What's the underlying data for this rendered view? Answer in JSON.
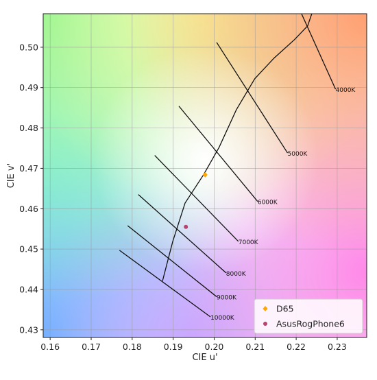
{
  "chart_data": {
    "type": "scatter",
    "x_label": "CIE u'",
    "y_label": "CIE v'",
    "xlim": [
      0.1583,
      0.2372
    ],
    "ylim": [
      0.4281,
      0.5083
    ],
    "xticks": [
      0.16,
      0.17,
      0.18,
      0.19,
      {
        "value": 0.2,
        "label": "0.20"
      },
      0.21,
      0.22,
      0.23
    ],
    "yticks": [
      0.43,
      0.44,
      0.45,
      0.46,
      0.47,
      0.48,
      0.49,
      {
        "value": 0.5,
        "label": "0.50"
      }
    ],
    "grid": true,
    "legend": "lower right",
    "locus": {
      "u": [
        0.1874,
        0.1899,
        0.1929,
        0.1974,
        0.2012,
        0.2054,
        0.2099,
        0.2146,
        0.2196,
        0.2228,
        0.2238
      ],
      "v": [
        0.4421,
        0.4519,
        0.4614,
        0.4684,
        0.4752,
        0.4845,
        0.4922,
        0.4973,
        0.5019,
        0.5053,
        0.5083
      ]
    },
    "isotherms": [
      {
        "name": "4000K",
        "u": [
          0.2213,
          0.2296
        ],
        "v": [
          0.5083,
          0.4896
        ]
      },
      {
        "name": "5000K",
        "u": [
          0.2006,
          0.2179
        ],
        "v": [
          0.5012,
          0.4738
        ]
      },
      {
        "name": "6000K",
        "u": [
          0.1914,
          0.2106
        ],
        "v": [
          0.4854,
          0.4618
        ]
      },
      {
        "name": "7000K",
        "u": [
          0.1855,
          0.2059
        ],
        "v": [
          0.4732,
          0.4519
        ]
      },
      {
        "name": "8000K",
        "u": [
          0.1815,
          0.2029
        ],
        "v": [
          0.4635,
          0.4441
        ]
      },
      {
        "name": "9000K",
        "u": [
          0.1789,
          0.2006
        ],
        "v": [
          0.4558,
          0.4382
        ]
      },
      {
        "name": "10000K",
        "u": [
          0.1769,
          0.1991
        ],
        "v": [
          0.4497,
          0.4332
        ]
      }
    ],
    "series": [
      {
        "name": "D65",
        "color": "#ffa500",
        "marker": "diamond",
        "x": [
          0.1978
        ],
        "y": [
          0.4684
        ]
      },
      {
        "name": "AsusRogPhone6",
        "color": "#b5456e",
        "marker": "circle",
        "x": [
          0.1931
        ],
        "y": [
          0.4555
        ]
      }
    ]
  }
}
